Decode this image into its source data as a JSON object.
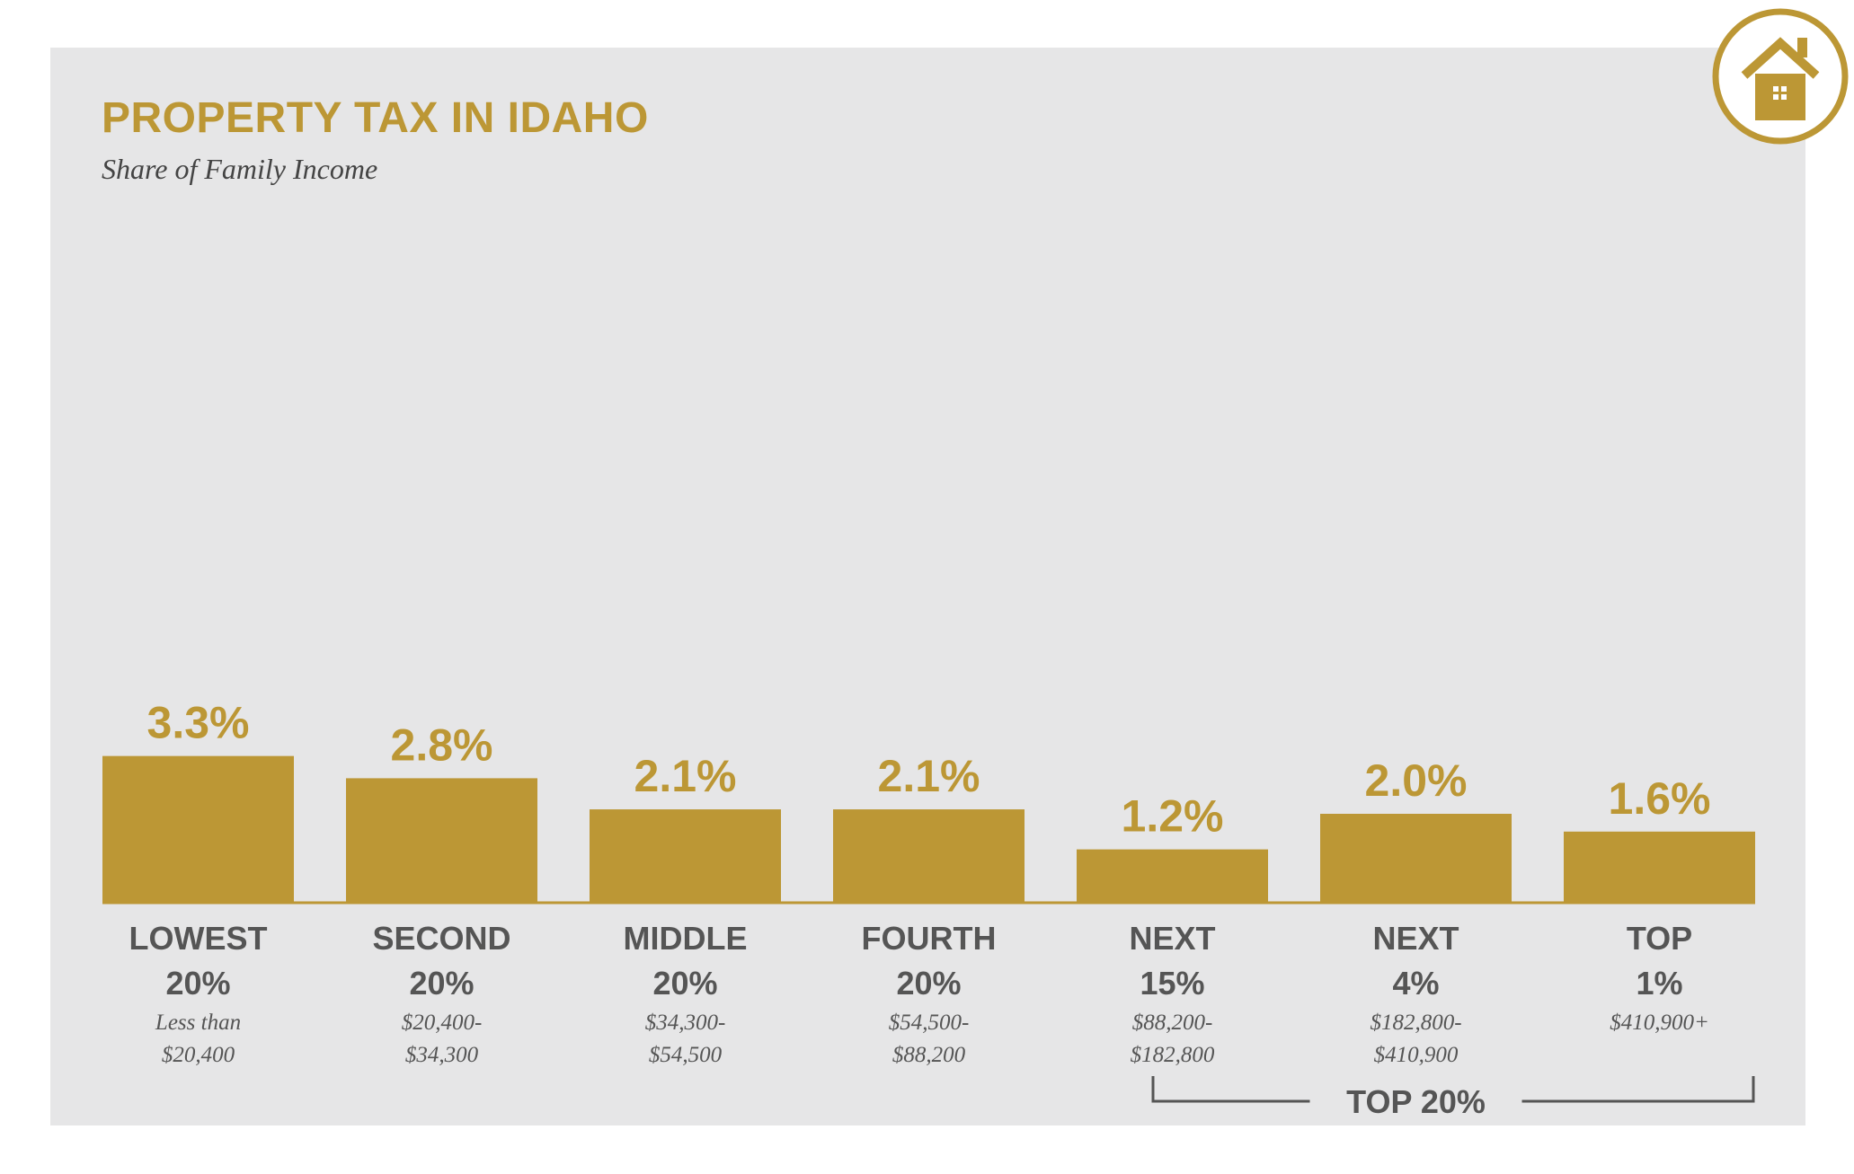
{
  "title": "PROPERTY TAX IN IDAHO",
  "subtitle": "Share of Family Income",
  "colors": {
    "bar": "#bc9735",
    "text_dark": "#555555",
    "background": "#e6e6e7"
  },
  "icon": "house-icon",
  "chart_data": {
    "type": "bar",
    "title": "PROPERTY TAX IN IDAHO",
    "subtitle": "Share of Family Income",
    "xlabel": "",
    "ylabel": "",
    "grid": false,
    "categories": [
      {
        "line1": "LOWEST",
        "line2": "20%",
        "range1": "Less than",
        "range2": "$20,400"
      },
      {
        "line1": "SECOND",
        "line2": "20%",
        "range1": "$20,400-",
        "range2": "$34,300"
      },
      {
        "line1": "MIDDLE",
        "line2": "20%",
        "range1": "$34,300-",
        "range2": "$54,500"
      },
      {
        "line1": "FOURTH",
        "line2": "20%",
        "range1": "$54,500-",
        "range2": "$88,200"
      },
      {
        "line1": "NEXT",
        "line2": "15%",
        "range1": "$88,200-",
        "range2": "$182,800"
      },
      {
        "line1": "NEXT",
        "line2": "4%",
        "range1": "$182,800-",
        "range2": "$410,900"
      },
      {
        "line1": "TOP",
        "line2": "1%",
        "range1": "$410,900+",
        "range2": ""
      }
    ],
    "values": [
      3.3,
      2.8,
      2.1,
      2.1,
      1.2,
      2.0,
      1.6
    ],
    "value_labels": [
      "3.3%",
      "2.8%",
      "2.1%",
      "2.1%",
      "1.2%",
      "2.0%",
      "1.6%"
    ],
    "group_bracket": {
      "label": "TOP 20%",
      "from_index": 4,
      "to_index": 6
    }
  }
}
